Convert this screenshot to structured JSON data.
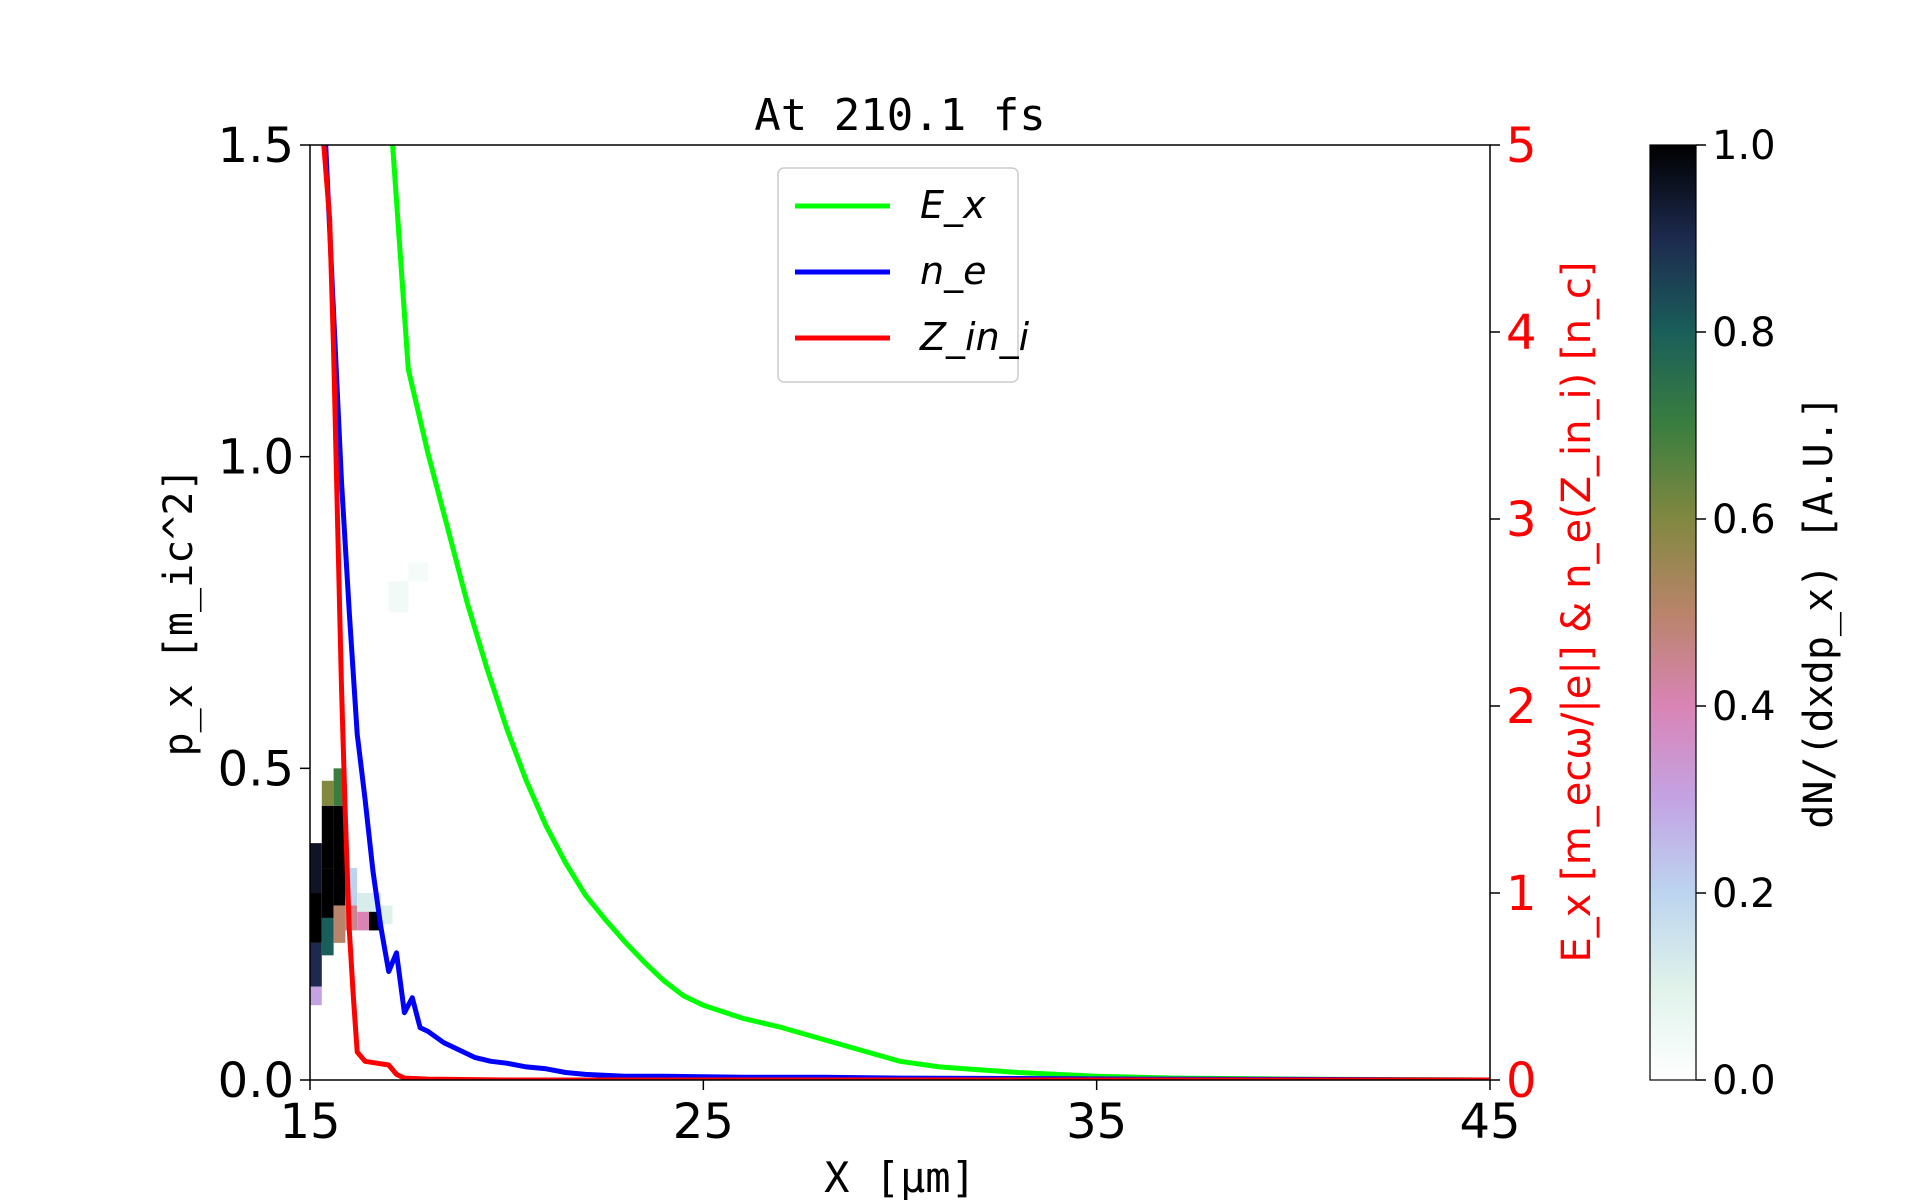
{
  "chart_data": {
    "type": "line",
    "title": "At 210.1 fs",
    "xlabel": "X [μm]",
    "ylabel_left": "p_x [m_ic^2]",
    "ylabel_right": "E_x [m_ecω/|e|] & n_e(Z_in_i) [n_c]",
    "colorbar_label": "dN/(dxdp_x) [A.U.]",
    "xlim": [
      15,
      45
    ],
    "ylim_left": [
      0,
      1.5
    ],
    "ylim_right": [
      0,
      5
    ],
    "clim": [
      0,
      1
    ],
    "x_ticks": [
      "15",
      "25",
      "35",
      "45"
    ],
    "y_left_ticks": [
      "0.0",
      "0.5",
      "1.0",
      "1.5"
    ],
    "y_right_ticks": [
      "0",
      "1",
      "2",
      "3",
      "4",
      "5"
    ],
    "colorbar_ticks": [
      "0.0",
      "0.2",
      "0.4",
      "0.6",
      "0.8",
      "1.0"
    ],
    "legend": {
      "placement": "upper-center",
      "entries": [
        {
          "label": "E_x",
          "color": "#00ff00"
        },
        {
          "label": "n_e",
          "color": "#0000ff"
        },
        {
          "label": "Z_in_i",
          "color": "#ff0000"
        }
      ]
    },
    "series": [
      {
        "name": "E_x",
        "axis": "right",
        "color": "#00ff00",
        "x": [
          17.1,
          17.5,
          18.0,
          18.5,
          19.0,
          19.5,
          20.0,
          20.5,
          21.0,
          21.5,
          22.0,
          22.5,
          23.0,
          23.5,
          24.0,
          24.5,
          25.0,
          26.0,
          27.0,
          28.0,
          29.0,
          30.0,
          31.0,
          32.0,
          33.0,
          34.0,
          35.0,
          37.0,
          40.0,
          45.0
        ],
        "y": [
          5.0,
          3.8,
          3.35,
          2.95,
          2.55,
          2.2,
          1.88,
          1.6,
          1.36,
          1.16,
          0.99,
          0.86,
          0.74,
          0.63,
          0.53,
          0.45,
          0.4,
          0.33,
          0.28,
          0.22,
          0.16,
          0.1,
          0.07,
          0.055,
          0.04,
          0.03,
          0.02,
          0.01,
          0.005,
          0.0
        ]
      },
      {
        "name": "n_e",
        "axis": "right",
        "color": "#0000ff",
        "x": [
          15.4,
          15.6,
          15.8,
          16.0,
          16.2,
          16.4,
          16.6,
          16.8,
          17.0,
          17.2,
          17.4,
          17.6,
          17.8,
          18.0,
          18.4,
          18.8,
          19.2,
          19.6,
          20.0,
          20.5,
          21.0,
          21.5,
          22.0,
          23.0,
          24.0,
          26.0,
          28.0,
          30.0,
          33.0,
          36.0,
          40.0,
          45.0
        ],
        "y": [
          5.0,
          4.1,
          3.2,
          2.5,
          1.85,
          1.5,
          1.12,
          0.82,
          0.58,
          0.68,
          0.36,
          0.44,
          0.28,
          0.26,
          0.2,
          0.16,
          0.12,
          0.1,
          0.09,
          0.07,
          0.06,
          0.04,
          0.03,
          0.02,
          0.02,
          0.015,
          0.015,
          0.01,
          0.008,
          0.005,
          0.003,
          0.0
        ]
      },
      {
        "name": "Z_in_i",
        "axis": "right",
        "color": "#ff0000",
        "x": [
          15.35,
          15.5,
          15.6,
          15.7,
          15.8,
          15.9,
          16.0,
          16.1,
          16.2,
          16.4,
          16.7,
          17.0,
          17.2,
          17.4,
          18.0,
          20.0,
          30.0,
          45.0
        ],
        "y": [
          5.0,
          4.6,
          3.9,
          3.0,
          2.1,
          1.4,
          0.8,
          0.45,
          0.15,
          0.1,
          0.09,
          0.08,
          0.03,
          0.01,
          0.005,
          0.0,
          0.0,
          0.0
        ]
      }
    ],
    "heatmap": {
      "colormap": "cubehelix_r",
      "cells": [
        {
          "x": [
            15.0,
            15.3
          ],
          "y": [
            0.15,
            0.22
          ],
          "v": 0.9
        },
        {
          "x": [
            15.0,
            15.3
          ],
          "y": [
            0.22,
            0.3
          ],
          "v": 1.0
        },
        {
          "x": [
            15.0,
            15.3
          ],
          "y": [
            0.3,
            0.38
          ],
          "v": 0.95
        },
        {
          "x": [
            15.0,
            15.3
          ],
          "y": [
            0.12,
            0.15
          ],
          "v": 0.3
        },
        {
          "x": [
            15.3,
            15.6
          ],
          "y": [
            0.2,
            0.26
          ],
          "v": 0.8
        },
        {
          "x": [
            15.3,
            15.6
          ],
          "y": [
            0.26,
            0.34
          ],
          "v": 1.0
        },
        {
          "x": [
            15.3,
            15.6
          ],
          "y": [
            0.34,
            0.44
          ],
          "v": 1.0
        },
        {
          "x": [
            15.3,
            15.6
          ],
          "y": [
            0.44,
            0.48
          ],
          "v": 0.6
        },
        {
          "x": [
            15.6,
            15.9
          ],
          "y": [
            0.22,
            0.28
          ],
          "v": 0.5
        },
        {
          "x": [
            15.6,
            15.9
          ],
          "y": [
            0.28,
            0.44
          ],
          "v": 1.0
        },
        {
          "x": [
            15.6,
            15.9
          ],
          "y": [
            0.44,
            0.5
          ],
          "v": 0.7
        },
        {
          "x": [
            15.9,
            16.2
          ],
          "y": [
            0.24,
            0.28
          ],
          "v": 0.45
        },
        {
          "x": [
            15.9,
            16.2
          ],
          "y": [
            0.28,
            0.34
          ],
          "v": 0.2
        },
        {
          "x": [
            16.2,
            16.5
          ],
          "y": [
            0.24,
            0.27
          ],
          "v": 0.4
        },
        {
          "x": [
            16.5,
            16.8
          ],
          "y": [
            0.24,
            0.27
          ],
          "v": 1.0
        },
        {
          "x": [
            16.8,
            17.1
          ],
          "y": [
            0.25,
            0.28
          ],
          "v": 0.1
        },
        {
          "x": [
            16.2,
            16.8
          ],
          "y": [
            0.27,
            0.3
          ],
          "v": 0.12
        },
        {
          "x": [
            17.0,
            17.5
          ],
          "y": [
            0.75,
            0.8
          ],
          "v": 0.04
        },
        {
          "x": [
            17.5,
            18.0
          ],
          "y": [
            0.8,
            0.83
          ],
          "v": 0.03
        }
      ]
    }
  }
}
